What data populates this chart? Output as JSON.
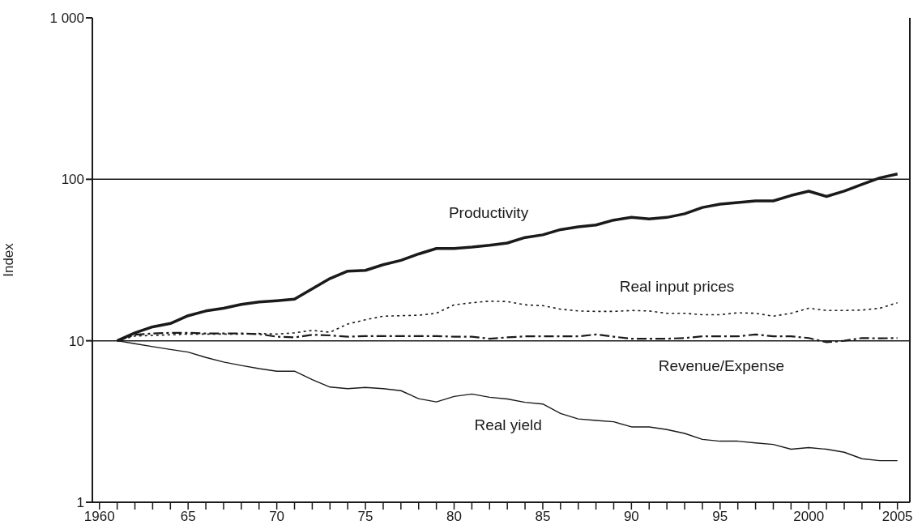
{
  "chart_data": {
    "type": "line",
    "ylabel": "Index",
    "log": "y",
    "grid": "y",
    "legend": false,
    "marker": "none",
    "x": [
      1961,
      1962,
      1963,
      1964,
      1965,
      1966,
      1967,
      1968,
      1969,
      1970,
      1971,
      1972,
      1973,
      1974,
      1975,
      1976,
      1977,
      1978,
      1979,
      1980,
      1981,
      1982,
      1983,
      1984,
      1985,
      1986,
      1987,
      1988,
      1989,
      1990,
      1991,
      1992,
      1993,
      1994,
      1995,
      1996,
      1997,
      1998,
      1999,
      2000,
      2001,
      2002,
      2003,
      2004,
      2005
    ],
    "series": [
      {
        "name": "Productivity",
        "color": "#1a1a1a",
        "line_style": "solid",
        "values": [
          10,
          11.2,
          12.2,
          12.8,
          14.3,
          15.3,
          15.9,
          16.8,
          17.4,
          17.7,
          18.1,
          21.0,
          24.3,
          27.0,
          27.3,
          29.6,
          31.5,
          34.5,
          37.3,
          37.3,
          38.0,
          39.0,
          40.3,
          43.6,
          45.3,
          48.8,
          50.8,
          52.1,
          55.9,
          58.1,
          56.9,
          58.1,
          61.2,
          66.9,
          70.2,
          71.8,
          73.5,
          73.5,
          79.4,
          84.4,
          78.3,
          84.6,
          93.1,
          102,
          108
        ]
      },
      {
        "name": "Real input prices",
        "color": "#1a1a1a",
        "line_style": "dotted",
        "values": [
          10,
          10.7,
          10.8,
          10.9,
          11.0,
          11.0,
          11.0,
          11.0,
          11.1,
          11.0,
          11.2,
          11.6,
          11.3,
          12.7,
          13.5,
          14.2,
          14.3,
          14.4,
          14.8,
          16.7,
          17.2,
          17.6,
          17.5,
          16.7,
          16.5,
          15.7,
          15.3,
          15.2,
          15.2,
          15.4,
          15.3,
          14.8,
          14.8,
          14.5,
          14.5,
          14.9,
          14.8,
          14.2,
          14.8,
          15.9,
          15.4,
          15.4,
          15.5,
          15.9,
          17.2
        ]
      },
      {
        "name": "Revenue/Expense",
        "color": "#1a1a1a",
        "line_style": "dashed",
        "values": [
          10,
          10.9,
          11.1,
          11.2,
          11.2,
          11.1,
          11.1,
          11.1,
          11.0,
          10.6,
          10.5,
          10.9,
          10.8,
          10.6,
          10.7,
          10.7,
          10.7,
          10.7,
          10.7,
          10.6,
          10.6,
          10.3,
          10.5,
          10.65,
          10.65,
          10.65,
          10.65,
          10.95,
          10.6,
          10.3,
          10.3,
          10.3,
          10.4,
          10.65,
          10.65,
          10.65,
          10.95,
          10.65,
          10.65,
          10.4,
          9.8,
          10.0,
          10.4,
          10.35,
          10.4
        ]
      },
      {
        "name": "Real yield",
        "color": "#1a1a1a",
        "line_style": "solid",
        "values": [
          10,
          9.6,
          9.2,
          8.84,
          8.51,
          7.88,
          7.39,
          7.03,
          6.73,
          6.48,
          6.48,
          5.75,
          5.17,
          5.05,
          5.14,
          5.05,
          4.91,
          4.38,
          4.18,
          4.52,
          4.68,
          4.47,
          4.36,
          4.16,
          4.06,
          3.55,
          3.28,
          3.21,
          3.15,
          2.93,
          2.93,
          2.82,
          2.67,
          2.45,
          2.39,
          2.39,
          2.33,
          2.28,
          2.13,
          2.18,
          2.13,
          2.04,
          1.86,
          1.81,
          1.81
        ]
      }
    ],
    "xlim": [
      1959.6,
      2005.7
    ],
    "xticks": [
      1960,
      {
        "value": 1961,
        "label": null
      },
      {
        "value": 1962,
        "label": null
      },
      {
        "value": 1963,
        "label": null
      },
      {
        "value": 1964,
        "label": null
      },
      {
        "value": 1965,
        "label": "65"
      },
      {
        "value": 1966,
        "label": null
      },
      {
        "value": 1967,
        "label": null
      },
      {
        "value": 1968,
        "label": null
      },
      {
        "value": 1969,
        "label": null
      },
      {
        "value": 1970,
        "label": "70"
      },
      {
        "value": 1971,
        "label": null
      },
      {
        "value": 1972,
        "label": null
      },
      {
        "value": 1973,
        "label": null
      },
      {
        "value": 1974,
        "label": null
      },
      {
        "value": 1975,
        "label": "75"
      },
      {
        "value": 1976,
        "label": null
      },
      {
        "value": 1977,
        "label": null
      },
      {
        "value": 1978,
        "label": null
      },
      {
        "value": 1979,
        "label": null
      },
      {
        "value": 1980,
        "label": "80"
      },
      {
        "value": 1981,
        "label": null
      },
      {
        "value": 1982,
        "label": null
      },
      {
        "value": 1983,
        "label": null
      },
      {
        "value": 1984,
        "label": null
      },
      {
        "value": 1985,
        "label": "85"
      },
      {
        "value": 1986,
        "label": null
      },
      {
        "value": 1987,
        "label": null
      },
      {
        "value": 1988,
        "label": null
      },
      {
        "value": 1989,
        "label": null
      },
      {
        "value": 1990,
        "label": "90"
      },
      {
        "value": 1991,
        "label": null
      },
      {
        "value": 1992,
        "label": null
      },
      {
        "value": 1993,
        "label": null
      },
      {
        "value": 1994,
        "label": null
      },
      {
        "value": 1995,
        "label": "95"
      },
      {
        "value": 1996,
        "label": null
      },
      {
        "value": 1997,
        "label": null
      },
      {
        "value": 1998,
        "label": null
      },
      {
        "value": 1999,
        "label": null
      },
      2000,
      {
        "value": 2001,
        "label": null
      },
      {
        "value": 2002,
        "label": null
      },
      {
        "value": 2003,
        "label": null
      },
      {
        "value": 2004,
        "label": null
      },
      2005
    ],
    "ylim": [
      1,
      1000
    ],
    "yticks": [
      1,
      10,
      100,
      {
        "value": 1000,
        "label": "1 000"
      }
    ]
  }
}
